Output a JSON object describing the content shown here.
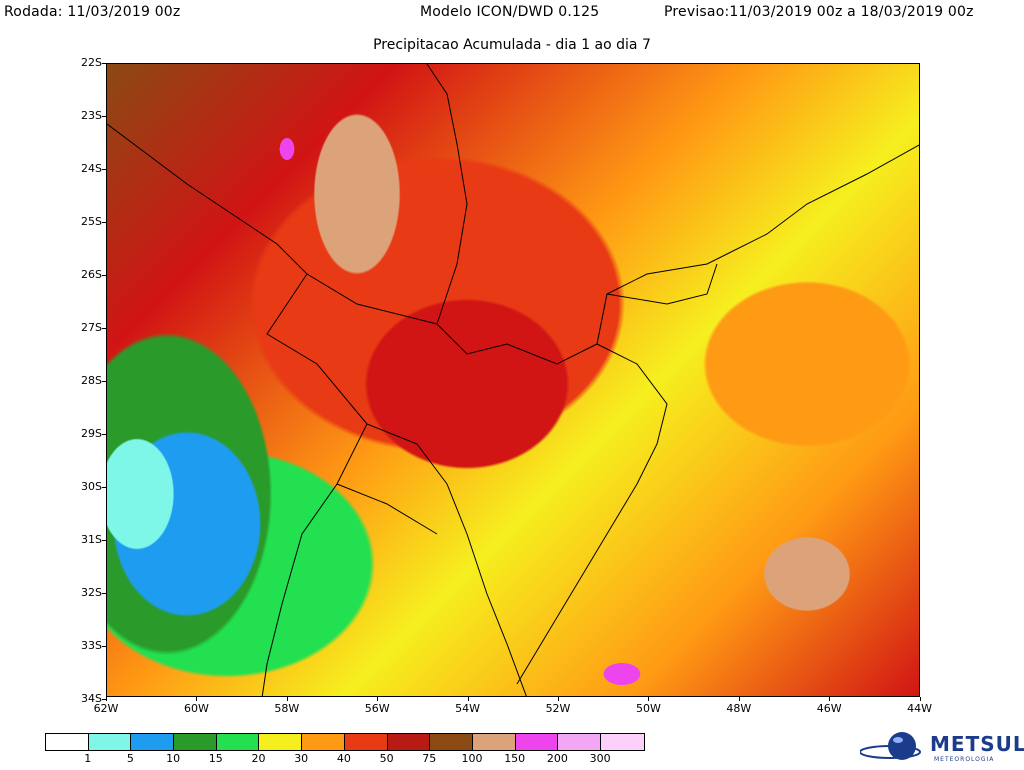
{
  "header": {
    "left": "Rodada: 11/03/2019 00z",
    "center": "Modelo ICON/DWD 0.125",
    "right": "Previsao:11/03/2019 00z a 18/03/2019 00z",
    "subtitle": "Precipitacao Acumulada - dia 1 ao dia 7"
  },
  "axes": {
    "lat_labels": [
      "22S",
      "23S",
      "24S",
      "25S",
      "26S",
      "27S",
      "28S",
      "29S",
      "30S",
      "31S",
      "32S",
      "33S",
      "34S"
    ],
    "lon_labels": [
      "62W",
      "60W",
      "58W",
      "56W",
      "54W",
      "52W",
      "50W",
      "48W",
      "46W",
      "44W"
    ]
  },
  "colorbar": {
    "colors": [
      "#ffffff",
      "#7ef7e8",
      "#1e9df0",
      "#2a9a2a",
      "#22e050",
      "#f6ef1e",
      "#ff9a14",
      "#e83a14",
      "#b81a14",
      "#8b4a14",
      "#dca37a",
      "#ee44ee",
      "#f3a6f3",
      "#fbd0fb"
    ],
    "labels": [
      "1",
      "5",
      "10",
      "15",
      "20",
      "30",
      "40",
      "50",
      "75",
      "100",
      "150",
      "200",
      "300"
    ]
  },
  "logo": {
    "name": "METSUL",
    "tagline": "METEOROLOGIA",
    "icon": "globe-icon"
  }
}
